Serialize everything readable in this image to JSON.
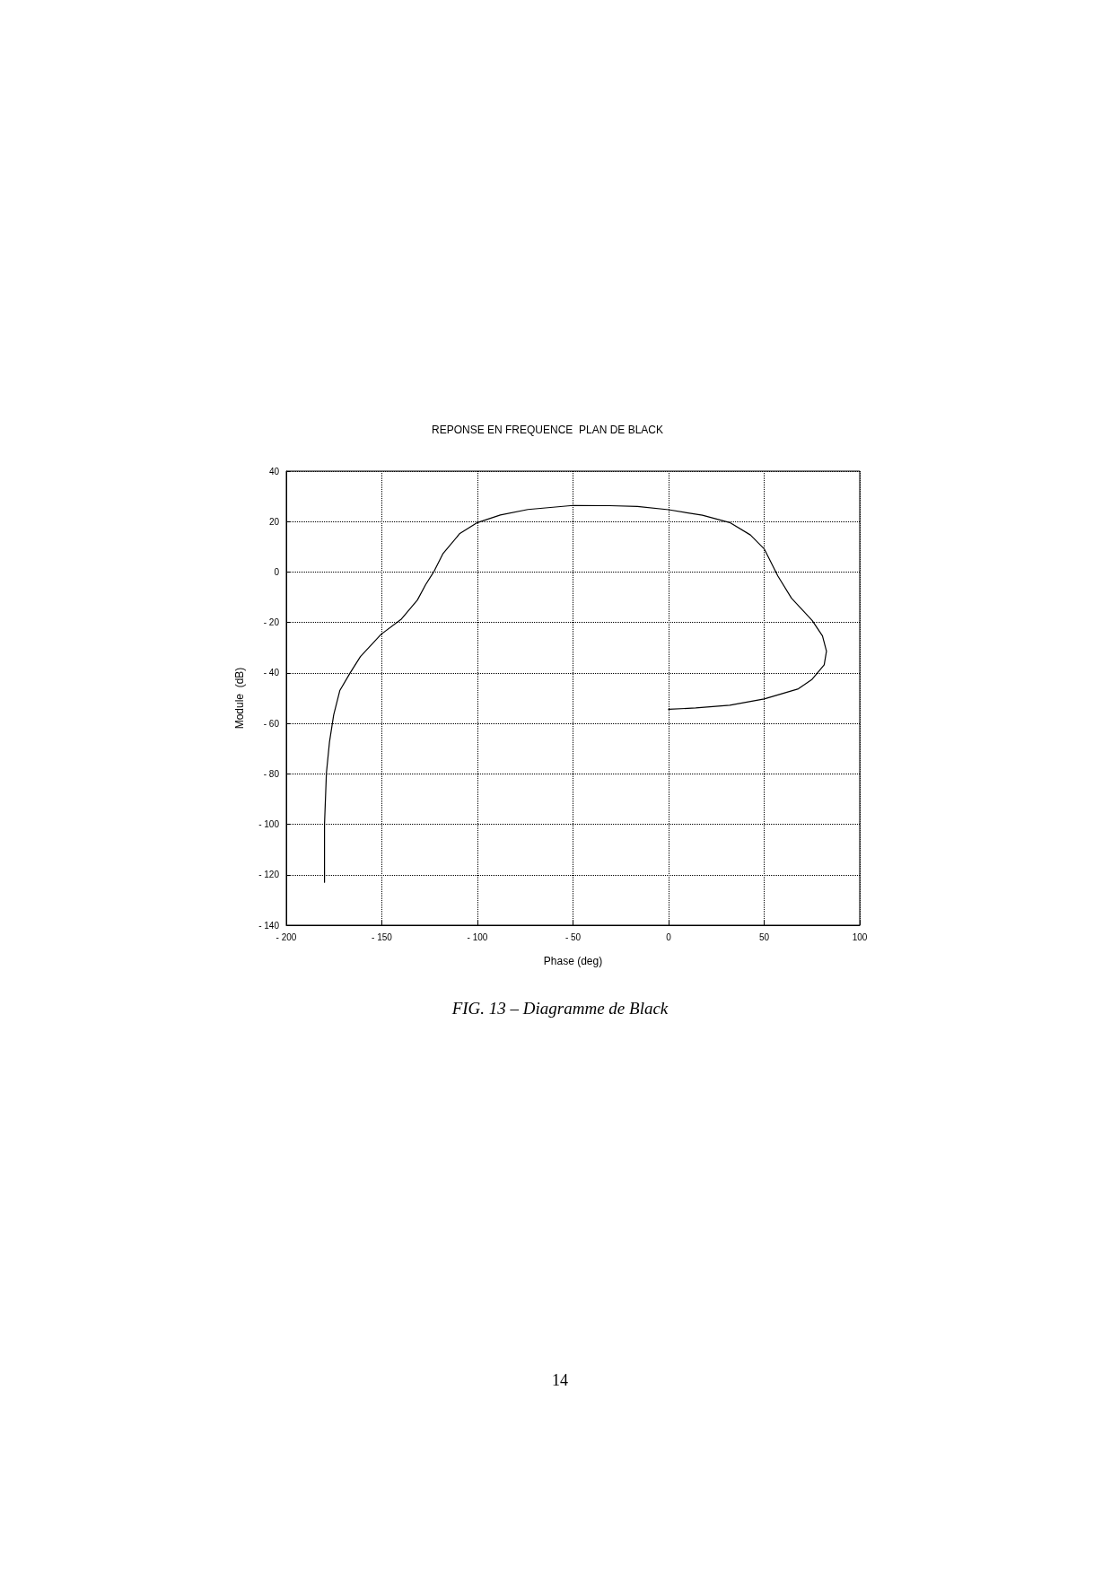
{
  "chart_data": {
    "type": "line",
    "title": "REPONSE EN FREQUENCE  PLAN DE BLACK",
    "xlabel": "Phase (deg)",
    "ylabel": "Module  (dB)",
    "xlim": [
      -200,
      100
    ],
    "ylim": [
      -140,
      40
    ],
    "xticks": [
      {
        "value": -200,
        "label": "- 200"
      },
      {
        "value": -150,
        "label": "- 150"
      },
      {
        "value": -100,
        "label": "- 100"
      },
      {
        "value": -50,
        "label": "- 50"
      },
      0,
      50,
      100
    ],
    "yticks": [
      {
        "value": -140,
        "label": "- 140"
      },
      {
        "value": -120,
        "label": "- 120"
      },
      {
        "value": -100,
        "label": "- 100"
      },
      {
        "value": -80,
        "label": "- 80"
      },
      {
        "value": -60,
        "label": "- 60"
      },
      {
        "value": -40,
        "label": "- 40"
      },
      {
        "value": -20,
        "label": "- 20"
      },
      0,
      20,
      40
    ],
    "grid": true,
    "marker": "none",
    "line_style": "solid",
    "series": [
      {
        "color": "#000000",
        "x": [
          -180,
          -180,
          -179,
          -177.4,
          -175.2,
          -172,
          -166.6,
          -161.2,
          -150.4,
          -139.7,
          -131.4,
          -127.1,
          -122.6,
          -118.1,
          -109.2,
          -100,
          -88,
          -73.6,
          -50,
          -30.8,
          -16.3,
          0,
          17.7,
          32,
          42.8,
          50,
          57.2,
          64.3,
          75.1,
          80.5,
          82.6,
          81.4,
          75.1,
          67.9,
          50,
          32,
          14.2,
          0
        ],
        "values": [
          -123,
          -100,
          -79.6,
          -67.4,
          -56.6,
          -47,
          -40,
          -33.5,
          -24.7,
          -18.6,
          -11.1,
          -5,
          0.4,
          7.2,
          15.3,
          19.6,
          22.6,
          24.8,
          26.4,
          26.3,
          26,
          24.7,
          22.5,
          19.6,
          14.7,
          9.2,
          -1.6,
          -10.4,
          -19.2,
          -25.3,
          -31.4,
          -36.8,
          -42.5,
          -46.3,
          -50.3,
          -52.8,
          -53.9,
          -54.4
        ]
      }
    ],
    "annotations": [
      "FIG. 13 – Diagramme de Black",
      "14"
    ]
  }
}
